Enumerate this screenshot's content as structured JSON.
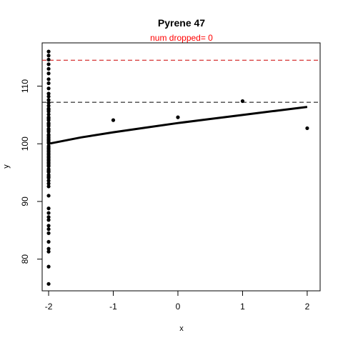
{
  "chart_data": {
    "type": "scatter",
    "title": "Pyrene 47",
    "subtitle": "num dropped= 0",
    "xlabel": "x",
    "ylabel": "y",
    "xlim": [
      -2.1,
      2.2
    ],
    "ylim": [
      74.5,
      117.5
    ],
    "x_ticks": [
      -2,
      -1,
      0,
      1,
      2
    ],
    "y_ticks": [
      80,
      90,
      100,
      110
    ],
    "grid": false,
    "colors": {
      "points": "#000000",
      "fit_line": "#000000",
      "upper_limit": "#cc0000",
      "mean_line": "#000000",
      "subtitle": "#ff0000"
    },
    "reference_lines": [
      {
        "y": 114.5,
        "style": "dashed",
        "color": "#cc0000"
      },
      {
        "y": 107.2,
        "style": "dashed",
        "color": "#000000"
      }
    ],
    "fit_curve": {
      "x": [
        -2.0,
        -1.5,
        -1.0,
        -0.5,
        0.0,
        0.5,
        1.0,
        1.5,
        2.0
      ],
      "y": [
        100.0,
        101.1,
        102.0,
        102.8,
        103.6,
        104.3,
        105.0,
        105.7,
        106.4
      ]
    },
    "points": {
      "x": [
        -2,
        -2,
        -2,
        -2,
        -2,
        -2,
        -2,
        -2,
        -2,
        -2,
        -2,
        -2,
        -2,
        -2,
        -2,
        -2,
        -2,
        -2,
        -2,
        -2,
        -2,
        -2,
        -2,
        -2,
        -2,
        -2,
        -2,
        -2,
        -2,
        -2,
        -2,
        -2,
        -2,
        -2,
        -2,
        -2,
        -2,
        -2,
        -2,
        -2,
        -2,
        -2,
        -2,
        -2,
        -2,
        -2,
        -2,
        -2,
        -2,
        -2,
        -2,
        -2,
        -2,
        -2,
        -2,
        -2,
        -2,
        -2,
        -2,
        -2,
        -2,
        -2,
        -2,
        -2,
        -2,
        -2,
        -2,
        -2,
        -2,
        -2,
        -2,
        -1,
        0,
        1,
        2
      ],
      "y": [
        116.0,
        115.3,
        114.6,
        113.8,
        113.0,
        112.2,
        111.2,
        110.5,
        109.6,
        108.7,
        108.2,
        107.6,
        107.1,
        106.6,
        106.1,
        105.6,
        105.1,
        104.6,
        104.1,
        103.6,
        103.1,
        102.6,
        102.1,
        101.6,
        101.1,
        100.6,
        100.1,
        99.6,
        99.1,
        98.6,
        98.1,
        97.6,
        97.1,
        96.6,
        96.1,
        95.6,
        95.1,
        94.6,
        94.1,
        93.6,
        93.1,
        92.6,
        91.0,
        88.8,
        88.0,
        87.3,
        86.8,
        85.8,
        85.2,
        84.5,
        83.0,
        81.8,
        81.3,
        78.7,
        75.7,
        105.9,
        104.4,
        103.4,
        102.4,
        101.4,
        100.3,
        99.3,
        98.3,
        97.3,
        96.3,
        95.3,
        94.3,
        97.8,
        96.8,
        98.8,
        100.8,
        104.1,
        104.6,
        107.4,
        102.7
      ]
    }
  }
}
